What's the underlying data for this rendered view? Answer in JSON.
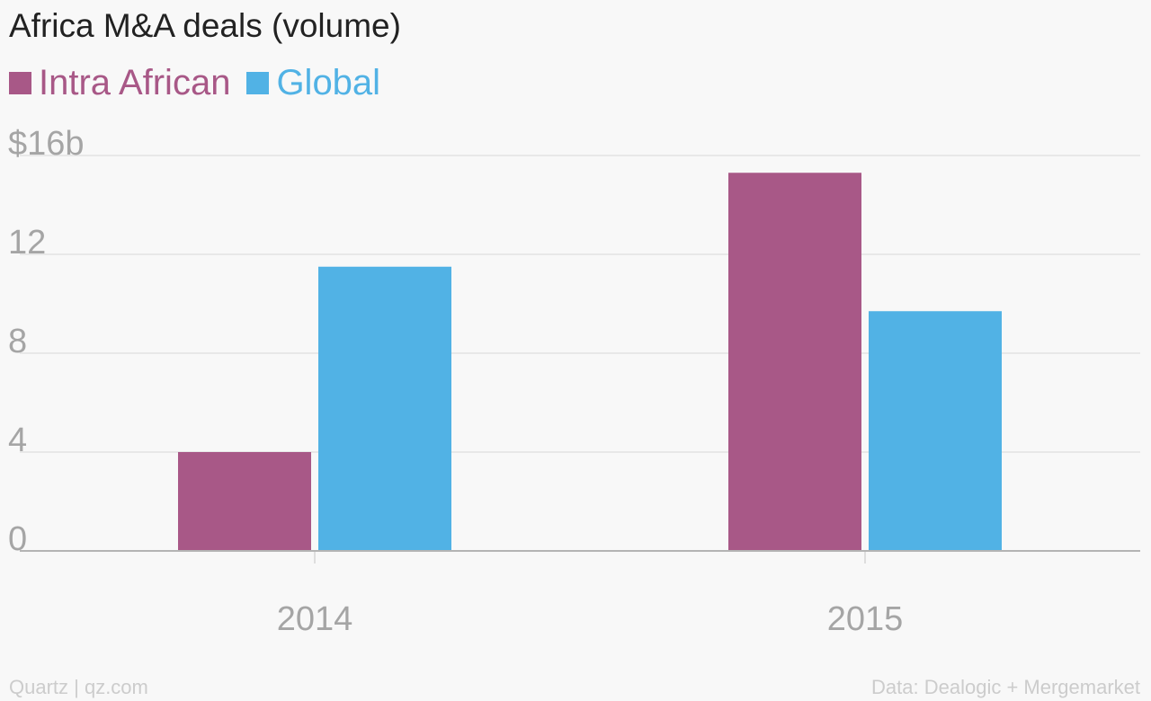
{
  "header": {
    "title": "Africa M&A deals (volume)"
  },
  "legend": {
    "items": [
      {
        "label": "Intra African",
        "color": "#a85887"
      },
      {
        "label": "Global",
        "color": "#51b2e5"
      }
    ]
  },
  "footer": {
    "credit": "Quartz | qz.com",
    "source": "Data: Dealogic + Mergemarket"
  },
  "chart_data": {
    "type": "bar",
    "title": "Africa M&A deals (volume)",
    "categories": [
      "2014",
      "2015"
    ],
    "series": [
      {
        "name": "Intra African",
        "color": "#a85887",
        "values": [
          4.0,
          15.3
        ]
      },
      {
        "name": "Global",
        "color": "#51b2e5",
        "values": [
          11.5,
          9.7
        ]
      }
    ],
    "ylim": [
      0,
      16
    ],
    "yticks": [
      0,
      4,
      8,
      12,
      16
    ],
    "ytick_labels": [
      "0",
      "4",
      "8",
      "12",
      "$16b"
    ],
    "xlabel": "",
    "ylabel": "",
    "grid": true,
    "legend_position": "top-left"
  }
}
